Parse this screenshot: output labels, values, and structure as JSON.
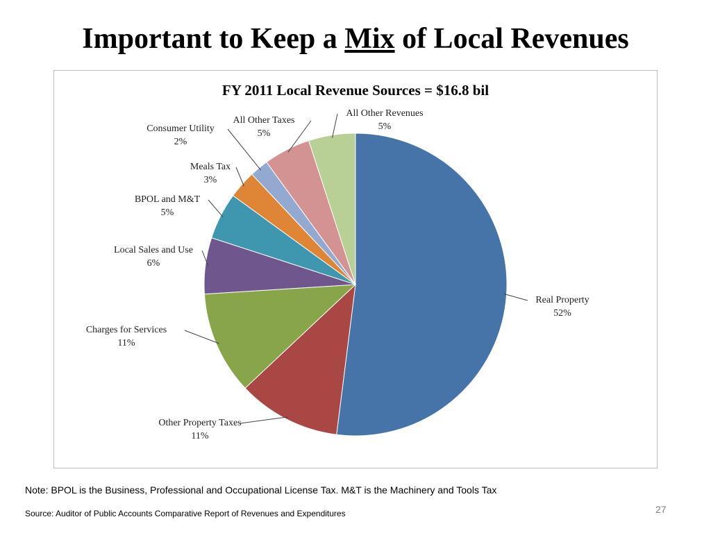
{
  "slide": {
    "title_before": "Important to Keep a ",
    "title_mix": "Mix",
    "title_after": " of Local Revenues",
    "note": "Note: BPOL is the Business, Professional and Occupational License Tax.  M&T is the Machinery and Tools Tax",
    "source": "Source:  Auditor of Public Accounts Comparative Report of Revenues and Expenditures",
    "page_number": "27"
  },
  "chart_data": {
    "type": "pie",
    "title": "FY 2011 Local Revenue  Sources = $16.8 bil",
    "slices": [
      {
        "label": "Real Property",
        "value": 52,
        "display": "52%",
        "color": "#4674A8"
      },
      {
        "label": "Other Property Taxes",
        "value": 11,
        "display": "11%",
        "color": "#A94744"
      },
      {
        "label": "Charges for Services",
        "value": 11,
        "display": "11%",
        "color": "#88A54A"
      },
      {
        "label": "Local Sales and Use",
        "value": 6,
        "display": "6%",
        "color": "#6F578E"
      },
      {
        "label": "BPOL and M&T",
        "value": 5,
        "display": "5%",
        "color": "#3F97AF"
      },
      {
        "label": "Meals Tax",
        "value": 3,
        "display": "3%",
        "color": "#DE8636"
      },
      {
        "label": "Consumer Utility",
        "value": 2,
        "display": "2%",
        "color": "#93A9CF"
      },
      {
        "label": "All Other Taxes",
        "value": 5,
        "display": "5%",
        "color": "#D39392"
      },
      {
        "label": "All Other Revenues",
        "value": 5,
        "display": "5%",
        "color": "#B8D095"
      }
    ],
    "legend": "none",
    "data_labels": "outside with leader lines"
  }
}
